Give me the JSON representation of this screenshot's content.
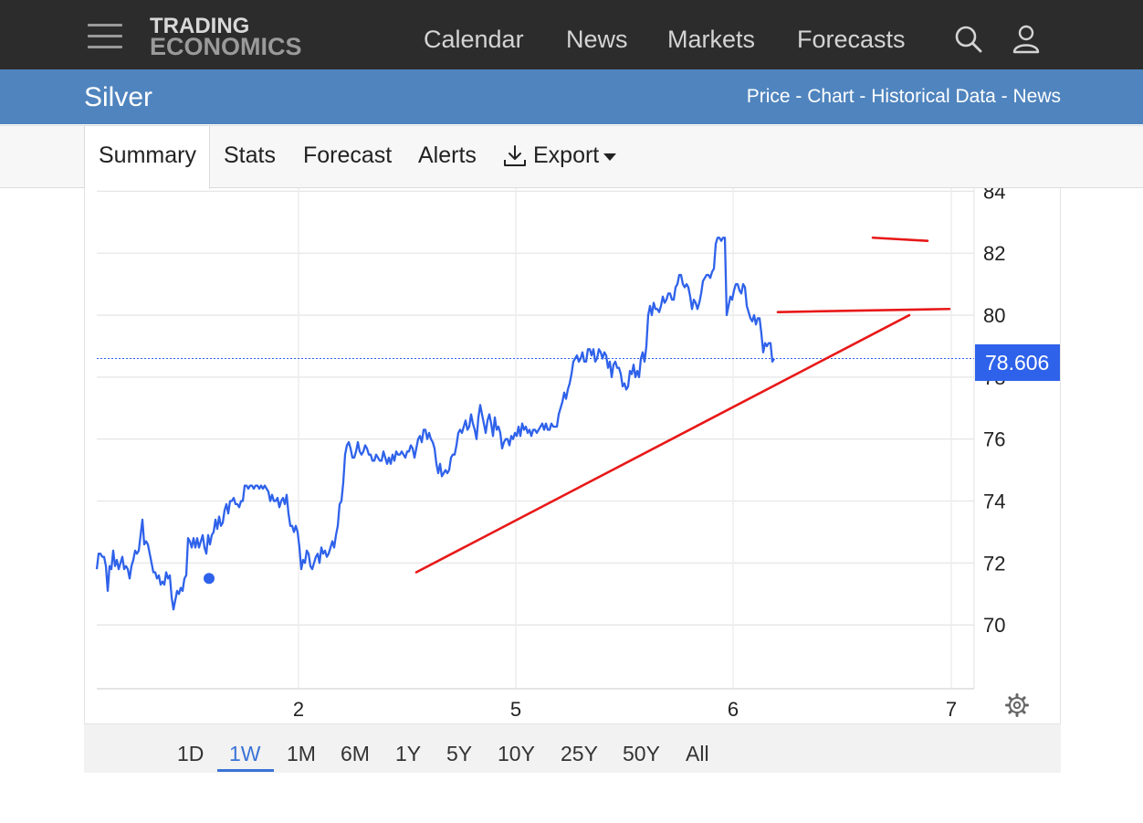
{
  "header": {
    "logo_line1": "TRADING",
    "logo_line2": "ECONOMICS",
    "nav": [
      "Calendar",
      "News",
      "Markets",
      "Forecasts"
    ],
    "icons": [
      "menu-icon",
      "search-icon",
      "user-icon"
    ]
  },
  "page": {
    "title": "Silver",
    "subnav": [
      "Price",
      "Chart",
      "Historical Data",
      "News"
    ],
    "subnav_separator": " - "
  },
  "tabs": {
    "items": [
      "Summary",
      "Stats",
      "Forecast",
      "Alerts",
      "Export"
    ],
    "active": "Summary"
  },
  "chart_data": {
    "type": "line",
    "y_ticks": [
      70,
      72,
      74,
      76,
      78,
      80,
      82,
      84
    ],
    "x_ticks": [
      "2",
      "5",
      "6",
      "7"
    ],
    "ylim": [
      68,
      84
    ],
    "current_value": "78.606",
    "line_color": "#2f62ea",
    "annotation_color": "#e81818",
    "series_points": [
      [
        0,
        71.8
      ],
      [
        2,
        72.3
      ],
      [
        4,
        72.3
      ],
      [
        6,
        72.2
      ],
      [
        8,
        72.2
      ],
      [
        10,
        71.9
      ],
      [
        12,
        71.1
      ],
      [
        14,
        71.9
      ],
      [
        16,
        71.8
      ],
      [
        18,
        72.4
      ],
      [
        20,
        71.9
      ],
      [
        22,
        72.1
      ],
      [
        24,
        71.8
      ],
      [
        26,
        72.0
      ],
      [
        28,
        72.2
      ],
      [
        30,
        71.8
      ],
      [
        32,
        71.9
      ],
      [
        34,
        71.8
      ],
      [
        36,
        71.5
      ],
      [
        38,
        71.9
      ],
      [
        40,
        72.1
      ],
      [
        42,
        72.4
      ],
      [
        44,
        72.3
      ],
      [
        46,
        72.4
      ],
      [
        48,
        72.9
      ],
      [
        50,
        73.4
      ],
      [
        52,
        72.6
      ],
      [
        54,
        72.7
      ],
      [
        56,
        72.6
      ],
      [
        58,
        72.3
      ],
      [
        60,
        72.0
      ],
      [
        62,
        71.7
      ],
      [
        64,
        71.7
      ],
      [
        66,
        71.5
      ],
      [
        68,
        71.6
      ],
      [
        70,
        71.3
      ],
      [
        72,
        71.4
      ],
      [
        74,
        71.3
      ],
      [
        76,
        71.7
      ],
      [
        78,
        71.5
      ],
      [
        80,
        71.6
      ],
      [
        82,
        70.9
      ],
      [
        84,
        70.5
      ],
      [
        86,
        70.8
      ],
      [
        88,
        71.1
      ],
      [
        90,
        71.0
      ],
      [
        92,
        71.2
      ],
      [
        94,
        71.1
      ],
      [
        96,
        71.5
      ],
      [
        98,
        71.6
      ],
      [
        100,
        72.8
      ],
      [
        102,
        72.7
      ],
      [
        104,
        72.5
      ],
      [
        106,
        72.8
      ],
      [
        108,
        72.5
      ],
      [
        110,
        72.8
      ],
      [
        112,
        72.5
      ],
      [
        114,
        72.7
      ],
      [
        116,
        72.9
      ],
      [
        118,
        72.5
      ],
      [
        120,
        72.3
      ],
      [
        122,
        72.9
      ],
      [
        124,
        72.6
      ],
      [
        126,
        72.9
      ],
      [
        128,
        73.0
      ],
      [
        130,
        73.4
      ],
      [
        132,
        73.1
      ],
      [
        134,
        73.5
      ],
      [
        136,
        73.2
      ],
      [
        138,
        73.3
      ],
      [
        140,
        73.7
      ],
      [
        142,
        73.9
      ],
      [
        144,
        73.6
      ],
      [
        146,
        74.0
      ],
      [
        148,
        74.0
      ],
      [
        150,
        74.1
      ],
      [
        152,
        73.9
      ],
      [
        154,
        73.9
      ],
      [
        156,
        73.8
      ],
      [
        158,
        74.0
      ],
      [
        160,
        74.0
      ],
      [
        162,
        74.5
      ],
      [
        164,
        74.5
      ],
      [
        166,
        74.4
      ],
      [
        168,
        74.5
      ],
      [
        170,
        74.5
      ],
      [
        172,
        74.4
      ],
      [
        174,
        74.5
      ],
      [
        176,
        74.5
      ],
      [
        178,
        74.4
      ],
      [
        180,
        74.5
      ],
      [
        182,
        74.4
      ],
      [
        184,
        74.5
      ],
      [
        186,
        74.4
      ],
      [
        188,
        74.3
      ],
      [
        190,
        74.0
      ],
      [
        192,
        74.2
      ],
      [
        194,
        74.0
      ],
      [
        196,
        74.0
      ],
      [
        198,
        74.1
      ],
      [
        200,
        73.8
      ],
      [
        202,
        74.0
      ],
      [
        204,
        74.1
      ],
      [
        206,
        73.9
      ],
      [
        208,
        74.2
      ],
      [
        210,
        73.6
      ],
      [
        212,
        73.2
      ],
      [
        214,
        73.2
      ],
      [
        216,
        73.0
      ],
      [
        218,
        73.2
      ],
      [
        220,
        73.0
      ],
      [
        222,
        72.5
      ],
      [
        224,
        71.8
      ],
      [
        226,
        72.1
      ],
      [
        228,
        72.0
      ],
      [
        230,
        72.4
      ],
      [
        232,
        72.3
      ],
      [
        234,
        71.9
      ],
      [
        236,
        71.8
      ],
      [
        238,
        72.0
      ],
      [
        240,
        72.2
      ],
      [
        242,
        72.3
      ],
      [
        244,
        72.0
      ],
      [
        246,
        72.5
      ],
      [
        248,
        72.3
      ],
      [
        250,
        72.4
      ],
      [
        252,
        72.2
      ],
      [
        254,
        72.3
      ],
      [
        256,
        72.5
      ],
      [
        258,
        72.7
      ],
      [
        260,
        72.5
      ],
      [
        262,
        72.9
      ],
      [
        264,
        73.2
      ],
      [
        266,
        73.9
      ],
      [
        268,
        74.0
      ],
      [
        270,
        74.6
      ],
      [
        272,
        75.5
      ],
      [
        274,
        75.8
      ],
      [
        276,
        75.9
      ],
      [
        278,
        75.7
      ],
      [
        280,
        75.4
      ],
      [
        282,
        75.4
      ],
      [
        284,
        75.6
      ],
      [
        286,
        75.9
      ],
      [
        288,
        75.6
      ],
      [
        290,
        75.5
      ],
      [
        292,
        75.6
      ],
      [
        294,
        75.8
      ],
      [
        296,
        75.7
      ],
      [
        298,
        75.5
      ],
      [
        300,
        75.5
      ],
      [
        302,
        75.3
      ],
      [
        304,
        75.3
      ],
      [
        306,
        75.5
      ],
      [
        308,
        75.4
      ],
      [
        310,
        75.3
      ],
      [
        312,
        75.3
      ],
      [
        314,
        75.6
      ],
      [
        316,
        75.4
      ],
      [
        318,
        75.2
      ],
      [
        320,
        75.4
      ],
      [
        322,
        75.2
      ],
      [
        324,
        75.5
      ],
      [
        326,
        75.3
      ],
      [
        328,
        75.6
      ],
      [
        330,
        75.5
      ],
      [
        332,
        75.5
      ],
      [
        334,
        75.6
      ],
      [
        336,
        75.5
      ],
      [
        338,
        75.4
      ],
      [
        340,
        75.6
      ],
      [
        342,
        75.6
      ],
      [
        344,
        75.8
      ],
      [
        346,
        75.7
      ],
      [
        348,
        75.4
      ],
      [
        350,
        75.7
      ],
      [
        352,
        76.0
      ],
      [
        354,
        76.1
      ],
      [
        356,
        75.9
      ],
      [
        358,
        76.3
      ],
      [
        360,
        76.3
      ],
      [
        362,
        76.0
      ],
      [
        364,
        76.2
      ],
      [
        366,
        76.0
      ],
      [
        368,
        75.9
      ],
      [
        370,
        75.7
      ],
      [
        372,
        75.2
      ],
      [
        374,
        74.9
      ],
      [
        376,
        75.2
      ],
      [
        378,
        74.8
      ],
      [
        380,
        74.9
      ],
      [
        382,
        75.0
      ],
      [
        384,
        74.9
      ],
      [
        386,
        75.0
      ],
      [
        388,
        75.4
      ],
      [
        390,
        75.5
      ],
      [
        392,
        75.5
      ],
      [
        394,
        75.8
      ],
      [
        396,
        76.2
      ],
      [
        398,
        76.3
      ],
      [
        400,
        76.2
      ],
      [
        402,
        76.4
      ],
      [
        404,
        76.6
      ],
      [
        406,
        76.3
      ],
      [
        408,
        76.4
      ],
      [
        410,
        76.8
      ],
      [
        412,
        76.5
      ],
      [
        414,
        76.3
      ],
      [
        416,
        76.0
      ],
      [
        418,
        76.7
      ],
      [
        420,
        77.1
      ],
      [
        422,
        76.8
      ],
      [
        424,
        76.5
      ],
      [
        426,
        76.2
      ],
      [
        428,
        76.6
      ],
      [
        430,
        76.8
      ],
      [
        432,
        76.5
      ],
      [
        434,
        76.1
      ],
      [
        436,
        76.7
      ],
      [
        438,
        76.3
      ],
      [
        440,
        76.4
      ],
      [
        442,
        76.2
      ],
      [
        444,
        75.7
      ],
      [
        446,
        75.9
      ],
      [
        448,
        76.0
      ],
      [
        450,
        76.0
      ],
      [
        452,
        75.8
      ],
      [
        454,
        76.1
      ],
      [
        456,
        76.0
      ],
      [
        458,
        76.2
      ],
      [
        460,
        76.1
      ],
      [
        462,
        76.4
      ],
      [
        464,
        76.1
      ],
      [
        466,
        76.5
      ],
      [
        468,
        76.3
      ],
      [
        470,
        76.4
      ],
      [
        472,
        76.2
      ],
      [
        474,
        76.3
      ],
      [
        476,
        76.1
      ],
      [
        478,
        76.3
      ],
      [
        480,
        76.3
      ],
      [
        482,
        76.2
      ],
      [
        484,
        76.3
      ],
      [
        486,
        76.4
      ],
      [
        488,
        76.5
      ],
      [
        490,
        76.3
      ],
      [
        492,
        76.5
      ],
      [
        494,
        76.3
      ],
      [
        496,
        76.3
      ],
      [
        498,
        76.5
      ],
      [
        500,
        76.4
      ],
      [
        502,
        76.4
      ],
      [
        504,
        76.4
      ],
      [
        506,
        76.8
      ],
      [
        508,
        77.0
      ],
      [
        510,
        77.2
      ],
      [
        512,
        77.5
      ],
      [
        514,
        77.3
      ],
      [
        516,
        77.6
      ],
      [
        518,
        77.8
      ],
      [
        520,
        78.1
      ],
      [
        522,
        78.5
      ],
      [
        524,
        78.6
      ],
      [
        526,
        78.7
      ],
      [
        528,
        78.5
      ],
      [
        530,
        78.6
      ],
      [
        532,
        78.8
      ],
      [
        534,
        78.5
      ],
      [
        536,
        78.5
      ],
      [
        538,
        78.9
      ],
      [
        540,
        78.9
      ],
      [
        542,
        78.7
      ],
      [
        544,
        78.9
      ],
      [
        546,
        78.5
      ],
      [
        548,
        78.6
      ],
      [
        550,
        78.9
      ],
      [
        552,
        78.8
      ],
      [
        554,
        78.6
      ],
      [
        556,
        78.8
      ],
      [
        558,
        78.7
      ],
      [
        560,
        78.3
      ],
      [
        562,
        78.5
      ],
      [
        564,
        78.0
      ],
      [
        566,
        78.4
      ],
      [
        568,
        78.5
      ],
      [
        570,
        78.3
      ],
      [
        572,
        78.3
      ],
      [
        574,
        78.1
      ],
      [
        576,
        77.7
      ],
      [
        578,
        77.8
      ],
      [
        580,
        77.6
      ],
      [
        582,
        77.7
      ],
      [
        584,
        78.2
      ],
      [
        586,
        78.1
      ],
      [
        588,
        78.4
      ],
      [
        590,
        78.0
      ],
      [
        592,
        78.2
      ],
      [
        594,
        78.0
      ],
      [
        596,
        78.6
      ],
      [
        598,
        78.8
      ],
      [
        600,
        78.5
      ],
      [
        602,
        79.0
      ],
      [
        604,
        80.0
      ],
      [
        606,
        80.3
      ],
      [
        608,
        80.0
      ],
      [
        610,
        80.4
      ],
      [
        612,
        80.2
      ],
      [
        614,
        80.2
      ],
      [
        616,
        80.1
      ],
      [
        618,
        80.3
      ],
      [
        620,
        80.6
      ],
      [
        622,
        80.4
      ],
      [
        624,
        80.5
      ],
      [
        626,
        80.7
      ],
      [
        628,
        80.7
      ],
      [
        630,
        80.5
      ],
      [
        632,
        80.5
      ],
      [
        634,
        80.9
      ],
      [
        636,
        81.0
      ],
      [
        638,
        81.3
      ],
      [
        640,
        81.3
      ],
      [
        642,
        81.0
      ],
      [
        644,
        80.9
      ],
      [
        646,
        81.0
      ],
      [
        648,
        80.9
      ],
      [
        650,
        80.6
      ],
      [
        652,
        80.2
      ],
      [
        654,
        80.5
      ],
      [
        656,
        80.4
      ],
      [
        658,
        80.2
      ],
      [
        660,
        80.4
      ],
      [
        662,
        80.7
      ],
      [
        664,
        81.1
      ],
      [
        666,
        81.2
      ],
      [
        668,
        81.3
      ],
      [
        670,
        81.3
      ],
      [
        672,
        81.2
      ],
      [
        674,
        81.4
      ],
      [
        676,
        81.5
      ],
      [
        678,
        82.3
      ],
      [
        680,
        82.5
      ],
      [
        682,
        82.5
      ],
      [
        684,
        82.4
      ],
      [
        686,
        82.5
      ],
      [
        688,
        82.5
      ],
      [
        690,
        80.0
      ],
      [
        692,
        80.3
      ],
      [
        694,
        80.6
      ],
      [
        696,
        80.5
      ],
      [
        698,
        80.8
      ],
      [
        700,
        81.0
      ],
      [
        702,
        81.0
      ],
      [
        704,
        80.8
      ],
      [
        706,
        80.7
      ],
      [
        708,
        81.0
      ],
      [
        710,
        80.9
      ],
      [
        712,
        80.3
      ],
      [
        714,
        80.1
      ],
      [
        716,
        79.9
      ],
      [
        718,
        79.8
      ],
      [
        720,
        80.0
      ],
      [
        722,
        79.7
      ],
      [
        724,
        79.9
      ],
      [
        726,
        79.9
      ],
      [
        728,
        79.4
      ],
      [
        730,
        78.8
      ],
      [
        732,
        79.1
      ],
      [
        734,
        79.0
      ],
      [
        736,
        79.1
      ],
      [
        738,
        79.1
      ],
      [
        740,
        78.5
      ],
      [
        742,
        78.6
      ]
    ],
    "series_x_range": [
      0,
      742
    ],
    "trend_lines": [
      {
        "from": [
          350,
          71.7
        ],
        "to": [
          890,
          80.0
        ]
      },
      {
        "from": [
          746,
          80.1
        ],
        "to": [
          934,
          80.2
        ]
      },
      {
        "from": [
          850,
          82.5
        ],
        "to": [
          910,
          82.4
        ]
      }
    ],
    "marker_point": [
      123,
      71.5
    ],
    "dotted_level": 78.6
  },
  "ranges": {
    "items": [
      "1D",
      "1W",
      "1M",
      "6M",
      "1Y",
      "5Y",
      "10Y",
      "25Y",
      "50Y",
      "All"
    ],
    "active": "1W"
  }
}
